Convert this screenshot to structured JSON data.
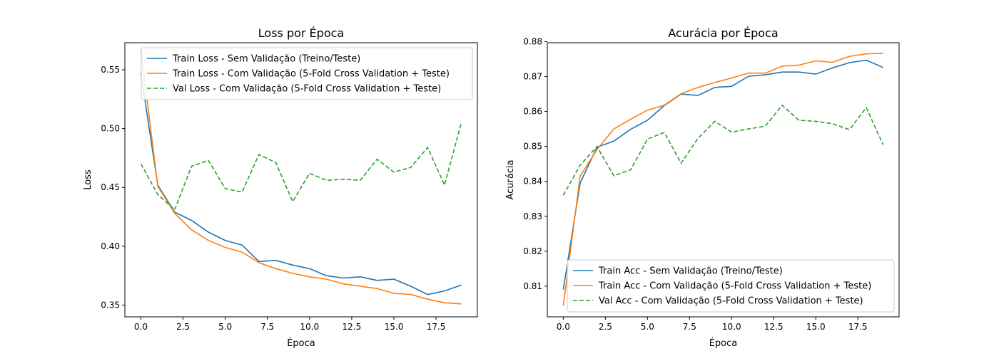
{
  "chart_data": [
    {
      "type": "line",
      "title": "Loss por Época",
      "xlabel": "Época",
      "ylabel": "Loss",
      "xlim": [
        -0.95,
        19.95
      ],
      "ylim": [
        0.34,
        0.573
      ],
      "xticks": [
        0.0,
        2.5,
        5.0,
        7.5,
        10.0,
        12.5,
        15.0,
        17.5
      ],
      "xtick_labels": [
        "0.0",
        "2.5",
        "5.0",
        "7.5",
        "10.0",
        "12.5",
        "15.0",
        "17.5"
      ],
      "yticks": [
        0.35,
        0.4,
        0.45,
        0.5,
        0.55
      ],
      "ytick_labels": [
        "0.35",
        "0.40",
        "0.45",
        "0.50",
        "0.55"
      ],
      "legend_position": "top-right",
      "x": [
        0,
        1,
        2,
        3,
        4,
        5,
        6,
        7,
        8,
        9,
        10,
        11,
        12,
        13,
        14,
        15,
        16,
        17,
        18,
        19
      ],
      "series": [
        {
          "name": "Train Loss - Sem Validação (Treino/Teste)",
          "color": "#1f77b4",
          "dash": "solid",
          "values": [
            0.547,
            0.452,
            0.429,
            0.422,
            0.412,
            0.405,
            0.401,
            0.387,
            0.388,
            0.384,
            0.381,
            0.375,
            0.373,
            0.374,
            0.371,
            0.372,
            0.366,
            0.359,
            0.362,
            0.367
          ]
        },
        {
          "name": "Train Loss - Com Validação (5-Fold Cross Validation + Teste)",
          "color": "#ff7f0e",
          "dash": "solid",
          "values": [
            0.567,
            0.451,
            0.428,
            0.414,
            0.405,
            0.399,
            0.395,
            0.386,
            0.381,
            0.377,
            0.374,
            0.372,
            0.368,
            0.366,
            0.364,
            0.36,
            0.359,
            0.355,
            0.352,
            0.351
          ]
        },
        {
          "name": "Val Loss - Com Validação (5-Fold Cross Validation + Teste)",
          "color": "#2ca02c",
          "dash": "dashed",
          "values": [
            0.47,
            0.444,
            0.431,
            0.468,
            0.473,
            0.449,
            0.446,
            0.478,
            0.471,
            0.438,
            0.462,
            0.456,
            0.457,
            0.456,
            0.474,
            0.463,
            0.467,
            0.484,
            0.452,
            0.505
          ]
        }
      ]
    },
    {
      "type": "line",
      "title": "Acurácia por Época",
      "xlabel": "Época",
      "ylabel": "Acurácia",
      "xlim": [
        -0.95,
        19.95
      ],
      "ylim": [
        0.8012,
        0.8797
      ],
      "xticks": [
        0.0,
        2.5,
        5.0,
        7.5,
        10.0,
        12.5,
        15.0,
        17.5
      ],
      "xtick_labels": [
        "0.0",
        "2.5",
        "5.0",
        "7.5",
        "10.0",
        "12.5",
        "15.0",
        "17.5"
      ],
      "yticks": [
        0.81,
        0.82,
        0.83,
        0.84,
        0.85,
        0.86,
        0.87,
        0.88
      ],
      "ytick_labels": [
        "0.81",
        "0.82",
        "0.83",
        "0.84",
        "0.85",
        "0.86",
        "0.87",
        "0.88"
      ],
      "legend_position": "bottom-right",
      "x": [
        0,
        1,
        2,
        3,
        4,
        5,
        6,
        7,
        8,
        9,
        10,
        11,
        12,
        13,
        14,
        15,
        16,
        17,
        18,
        19
      ],
      "series": [
        {
          "name": "Train Acc - Sem Validação (Treino/Teste)",
          "color": "#1f77b4",
          "dash": "solid",
          "values": [
            0.809,
            0.8395,
            0.8498,
            0.8515,
            0.8549,
            0.8575,
            0.8617,
            0.865,
            0.8646,
            0.8669,
            0.8672,
            0.8701,
            0.8705,
            0.8713,
            0.8713,
            0.8707,
            0.8725,
            0.874,
            0.8747,
            0.8726
          ]
        },
        {
          "name": "Train Acc - Com Validação (5-Fold Cross Validation + Teste)",
          "color": "#ff7f0e",
          "dash": "solid",
          "values": [
            0.8043,
            0.8415,
            0.8491,
            0.855,
            0.8578,
            0.8604,
            0.8618,
            0.8651,
            0.8669,
            0.8683,
            0.8696,
            0.871,
            0.871,
            0.873,
            0.8733,
            0.8745,
            0.8741,
            0.8758,
            0.8765,
            0.8767
          ]
        },
        {
          "name": "Val Acc - Com Validação (5-Fold Cross Validation + Teste)",
          "color": "#2ca02c",
          "dash": "dashed",
          "values": [
            0.836,
            0.8446,
            0.85,
            0.8416,
            0.8433,
            0.8521,
            0.854,
            0.8452,
            0.8523,
            0.8572,
            0.8541,
            0.855,
            0.8558,
            0.8618,
            0.8575,
            0.8572,
            0.8565,
            0.8548,
            0.8611,
            0.8505
          ]
        }
      ]
    }
  ]
}
